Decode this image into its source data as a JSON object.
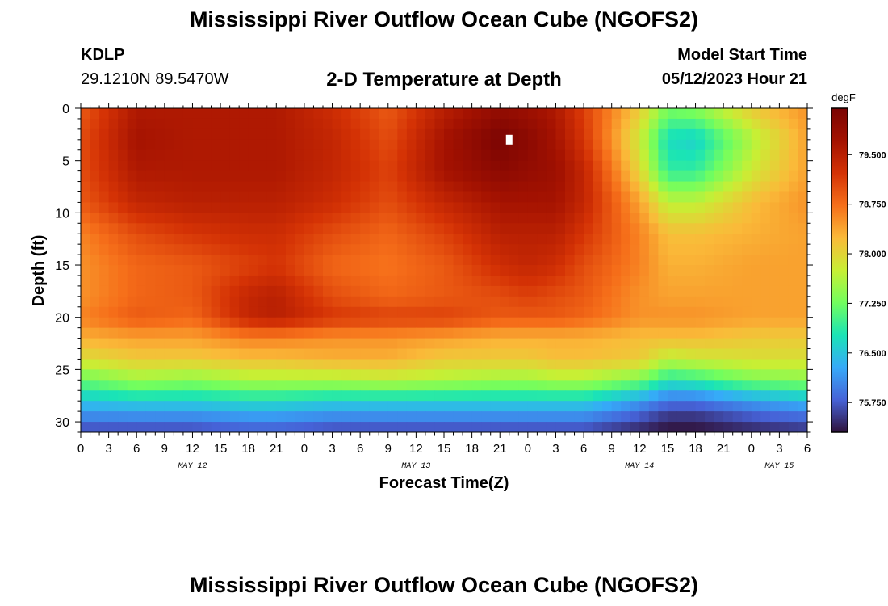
{
  "page": {
    "title": "Mississippi River Outflow Ocean Cube (NGOFS2)",
    "bottom_title": "Mississippi River Outflow Ocean Cube (NGOFS2)",
    "station_id": "KDLP",
    "coords": "29.1210N  89.5470W",
    "subtitle": "2-D Temperature at Depth",
    "model_start_label": "Model Start Time",
    "model_start_value": "05/12/2023 Hour 21"
  },
  "chart_data": {
    "type": "heatmap",
    "title": "2-D Temperature at Depth",
    "xlabel": "Forecast Time(Z)",
    "ylabel": "Depth (ft)",
    "x_hours_range": [
      0,
      78
    ],
    "x_tick_labels": [
      "0",
      "3",
      "6",
      "9",
      "12",
      "15",
      "18",
      "21",
      "0",
      "3",
      "6",
      "9",
      "12",
      "15",
      "18",
      "21",
      "0",
      "3",
      "6",
      "9",
      "12",
      "15",
      "18",
      "21",
      "0",
      "3",
      "6"
    ],
    "day_labels": [
      {
        "label": "MAY 12",
        "hour": 12
      },
      {
        "label": "MAY 13",
        "hour": 36
      },
      {
        "label": "MAY 14",
        "hour": 60
      },
      {
        "label": "MAY 15",
        "hour": 75
      }
    ],
    "y_range": [
      0,
      31
    ],
    "y_ticks": [
      0,
      5,
      10,
      15,
      20,
      25,
      30
    ],
    "colorbar": {
      "unit": "degF",
      "min": 75.3,
      "max": 80.2,
      "tick_labels": [
        "79.500",
        "78.750",
        "78.000",
        "77.250",
        "76.500",
        "75.750"
      ],
      "tick_values": [
        79.5,
        78.75,
        78.0,
        77.25,
        76.5,
        75.75
      ]
    },
    "grid_cols": 78,
    "grid_rows": 31,
    "field_points": {
      "depths_ft": [
        0,
        3,
        6,
        9,
        12,
        15,
        18,
        20,
        22,
        24,
        26,
        28,
        30,
        31
      ],
      "hours": [
        0,
        6,
        12,
        18,
        21,
        27,
        33,
        39,
        45,
        48,
        51,
        54,
        60,
        63,
        66,
        72,
        78
      ],
      "temps_degF": [
        [
          78.9,
          79.6,
          79.6,
          79.6,
          79.6,
          79.3,
          78.9,
          79.5,
          79.9,
          79.8,
          79.6,
          79.1,
          78.1,
          77.3,
          77.4,
          78.1,
          78.5
        ],
        [
          79.0,
          79.7,
          79.6,
          79.6,
          79.6,
          79.4,
          79.0,
          79.7,
          80.2,
          80.0,
          79.7,
          79.2,
          77.8,
          76.7,
          76.6,
          77.6,
          78.4
        ],
        [
          79.0,
          79.6,
          79.6,
          79.6,
          79.6,
          79.4,
          79.1,
          79.7,
          80.0,
          79.9,
          79.8,
          79.4,
          78.0,
          76.9,
          76.9,
          77.8,
          78.4
        ],
        [
          78.9,
          79.4,
          79.5,
          79.5,
          79.5,
          79.3,
          79.0,
          79.4,
          79.7,
          79.7,
          79.7,
          79.4,
          78.4,
          77.7,
          77.7,
          78.2,
          78.5
        ],
        [
          78.6,
          79.0,
          79.2,
          79.3,
          79.3,
          79.0,
          78.8,
          79.1,
          79.5,
          79.5,
          79.5,
          79.2,
          78.6,
          78.2,
          78.2,
          78.3,
          78.4
        ],
        [
          78.5,
          78.8,
          78.9,
          79.1,
          79.2,
          78.8,
          78.7,
          78.9,
          79.3,
          79.4,
          79.3,
          79.0,
          78.6,
          78.3,
          78.3,
          78.4,
          78.4
        ],
        [
          78.5,
          78.8,
          78.9,
          79.4,
          79.5,
          79.0,
          78.8,
          78.9,
          79.0,
          79.1,
          79.0,
          78.9,
          78.5,
          78.4,
          78.4,
          78.4,
          78.4
        ],
        [
          78.6,
          78.9,
          78.8,
          79.4,
          79.5,
          79.2,
          79.1,
          79.1,
          78.9,
          78.9,
          78.9,
          78.8,
          78.5,
          78.5,
          78.5,
          78.4,
          78.4
        ],
        [
          78.3,
          78.4,
          78.4,
          78.6,
          78.6,
          78.5,
          78.5,
          78.4,
          78.3,
          78.3,
          78.3,
          78.3,
          78.2,
          78.2,
          78.2,
          78.1,
          78.1
        ],
        [
          77.9,
          78.1,
          78.1,
          78.2,
          78.2,
          78.3,
          78.3,
          78.1,
          78.1,
          78.1,
          78.2,
          78.2,
          78.1,
          77.7,
          77.8,
          77.9,
          77.9
        ],
        [
          77.2,
          77.5,
          77.4,
          77.6,
          77.6,
          77.6,
          77.7,
          77.6,
          77.5,
          77.5,
          77.6,
          77.6,
          77.3,
          76.8,
          76.9,
          77.3,
          77.4
        ],
        [
          76.5,
          76.6,
          76.6,
          76.7,
          76.7,
          76.6,
          76.6,
          76.6,
          76.6,
          76.6,
          76.6,
          76.6,
          76.2,
          75.9,
          75.9,
          76.2,
          76.4
        ],
        [
          75.9,
          75.9,
          75.9,
          76.0,
          76.0,
          75.9,
          75.9,
          75.9,
          75.9,
          75.9,
          75.9,
          75.9,
          75.6,
          75.4,
          75.4,
          75.6,
          75.7
        ],
        [
          75.6,
          75.6,
          75.6,
          75.7,
          75.7,
          75.6,
          75.6,
          75.6,
          75.6,
          75.6,
          75.6,
          75.6,
          75.4,
          75.3,
          75.3,
          75.4,
          75.5
        ]
      ]
    },
    "marker": {
      "hour": 46,
      "depth_ft": 3
    }
  }
}
